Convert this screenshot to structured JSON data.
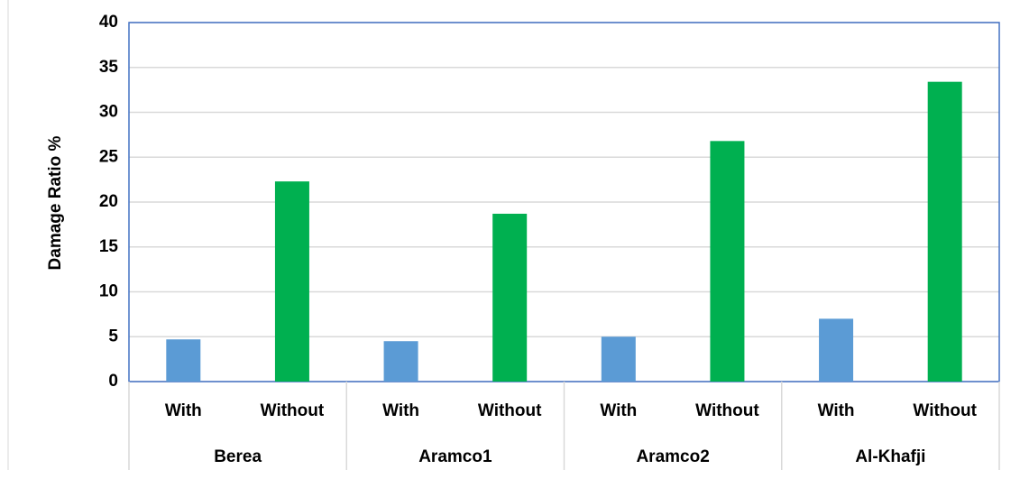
{
  "chart_data": {
    "type": "bar",
    "y_label": "Damage Ratio %",
    "groups": [
      "Berea",
      "Aramco1",
      "Aramco2",
      "Al-Khafji"
    ],
    "categories": [
      "With",
      "Without",
      "With",
      "Without",
      "With",
      "Without",
      "With",
      "Without"
    ],
    "values": [
      4.7,
      22.3,
      4.5,
      18.7,
      5.0,
      26.8,
      7.0,
      33.4
    ],
    "colors": [
      "#5b9bd5",
      "#00b050",
      "#5b9bd5",
      "#00b050",
      "#5b9bd5",
      "#00b050",
      "#5b9bd5",
      "#00b050"
    ],
    "ylim": [
      0,
      40
    ],
    "yticks": [
      0,
      5,
      10,
      15,
      20,
      25,
      30,
      35,
      40
    ],
    "grid": true
  }
}
